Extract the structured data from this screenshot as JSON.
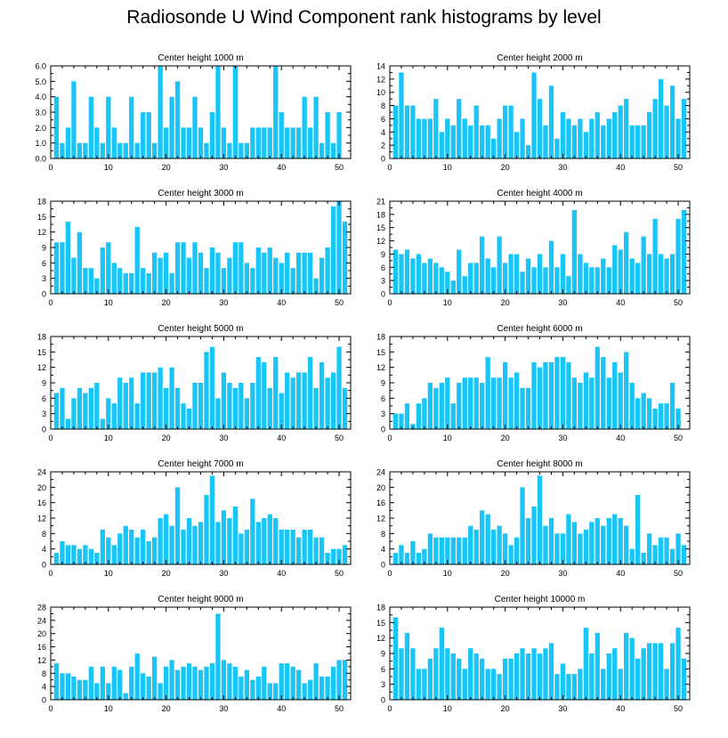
{
  "title": "Radiosonde U Wind Component rank histograms by level",
  "colors": {
    "bar": "#19c4f7",
    "axis": "#000000",
    "background": "#ffffff"
  },
  "chart_data": [
    {
      "type": "bar",
      "title": "Center height 1000 m",
      "ylim": [
        0,
        6.0
      ],
      "yticks": [
        0,
        1,
        2,
        3,
        4,
        5,
        6
      ],
      "ytick_labels": [
        "0.0",
        "1.0",
        "2.0",
        "3.0",
        "4.0",
        "5.0",
        "6.0"
      ],
      "xlim": [
        0,
        52
      ],
      "xticks": [
        0,
        10,
        20,
        30,
        40,
        50
      ],
      "x": [
        1,
        2,
        3,
        4,
        5,
        6,
        7,
        8,
        9,
        10,
        11,
        12,
        13,
        14,
        15,
        16,
        17,
        18,
        19,
        20,
        21,
        22,
        23,
        24,
        25,
        26,
        27,
        28,
        29,
        30,
        31,
        32,
        33,
        34,
        35,
        36,
        37,
        38,
        39,
        40,
        41,
        42,
        43,
        44,
        45,
        46,
        47,
        48,
        49,
        50,
        51
      ],
      "values": [
        4,
        1,
        2,
        5,
        1,
        1,
        4,
        2,
        1,
        4,
        2,
        1,
        1,
        4,
        1,
        3,
        3,
        1,
        6,
        2,
        4,
        5,
        2,
        2,
        4,
        2,
        1,
        3,
        6,
        2,
        1,
        6,
        1,
        1,
        2,
        2,
        2,
        2,
        6,
        3,
        2,
        2,
        2,
        4,
        2,
        4,
        1,
        3,
        1,
        3,
        0
      ]
    },
    {
      "type": "bar",
      "title": "Center height 2000 m",
      "ylim": [
        0,
        14
      ],
      "yticks": [
        0,
        2,
        4,
        6,
        8,
        10,
        12,
        14
      ],
      "ytick_labels": [
        "0",
        "2",
        "4",
        "6",
        "8",
        "10",
        "12",
        "14"
      ],
      "xlim": [
        0,
        52
      ],
      "xticks": [
        0,
        10,
        20,
        30,
        40,
        50
      ],
      "x": [
        1,
        2,
        3,
        4,
        5,
        6,
        7,
        8,
        9,
        10,
        11,
        12,
        13,
        14,
        15,
        16,
        17,
        18,
        19,
        20,
        21,
        22,
        23,
        24,
        25,
        26,
        27,
        28,
        29,
        30,
        31,
        32,
        33,
        34,
        35,
        36,
        37,
        38,
        39,
        40,
        41,
        42,
        43,
        44,
        45,
        46,
        47,
        48,
        49,
        50,
        51
      ],
      "values": [
        8,
        13,
        8,
        8,
        6,
        6,
        6,
        9,
        4,
        6,
        5,
        9,
        6,
        5,
        8,
        5,
        5,
        3,
        6,
        8,
        8,
        4,
        6,
        2,
        13,
        9,
        5,
        11,
        3,
        7,
        6,
        5,
        6,
        4,
        6,
        7,
        5,
        6,
        7,
        8,
        9,
        5,
        5,
        5,
        7,
        9,
        12,
        8,
        11,
        6,
        9
      ]
    },
    {
      "type": "bar",
      "title": "Center height 3000 m",
      "ylim": [
        0,
        18
      ],
      "yticks": [
        0,
        3,
        6,
        9,
        12,
        15,
        18
      ],
      "ytick_labels": [
        "0",
        "3",
        "6",
        "9",
        "12",
        "15",
        "18"
      ],
      "xlim": [
        0,
        52
      ],
      "xticks": [
        0,
        10,
        20,
        30,
        40,
        50
      ],
      "x": [
        1,
        2,
        3,
        4,
        5,
        6,
        7,
        8,
        9,
        10,
        11,
        12,
        13,
        14,
        15,
        16,
        17,
        18,
        19,
        20,
        21,
        22,
        23,
        24,
        25,
        26,
        27,
        28,
        29,
        30,
        31,
        32,
        33,
        34,
        35,
        36,
        37,
        38,
        39,
        40,
        41,
        42,
        43,
        44,
        45,
        46,
        47,
        48,
        49,
        50,
        51
      ],
      "values": [
        10,
        10,
        14,
        7,
        12,
        5,
        5,
        3,
        9,
        10,
        6,
        5,
        4,
        4,
        13,
        5,
        4,
        8,
        7,
        8,
        4,
        10,
        10,
        7,
        10,
        8,
        5,
        9,
        8,
        5,
        7,
        10,
        10,
        6,
        5,
        9,
        8,
        9,
        7,
        6,
        8,
        5,
        8,
        8,
        8,
        3,
        7,
        9,
        17,
        18,
        14
      ]
    },
    {
      "type": "bar",
      "title": "Center height 4000 m",
      "ylim": [
        0,
        21
      ],
      "yticks": [
        0,
        3,
        6,
        9,
        12,
        15,
        18,
        21
      ],
      "ytick_labels": [
        "0",
        "3",
        "6",
        "9",
        "12",
        "15",
        "18",
        "21"
      ],
      "xlim": [
        0,
        52
      ],
      "xticks": [
        0,
        10,
        20,
        30,
        40,
        50
      ],
      "x": [
        1,
        2,
        3,
        4,
        5,
        6,
        7,
        8,
        9,
        10,
        11,
        12,
        13,
        14,
        15,
        16,
        17,
        18,
        19,
        20,
        21,
        22,
        23,
        24,
        25,
        26,
        27,
        28,
        29,
        30,
        31,
        32,
        33,
        34,
        35,
        36,
        37,
        38,
        39,
        40,
        41,
        42,
        43,
        44,
        45,
        46,
        47,
        48,
        49,
        50,
        51
      ],
      "values": [
        10,
        9,
        10,
        8,
        9,
        7,
        8,
        7,
        6,
        5,
        3,
        10,
        4,
        7,
        7,
        13,
        8,
        6,
        13,
        7,
        9,
        9,
        5,
        8,
        6,
        9,
        6,
        12,
        6,
        9,
        4,
        19,
        9,
        7,
        6,
        6,
        8,
        6,
        11,
        10,
        14,
        8,
        7,
        13,
        9,
        17,
        9,
        8,
        9,
        17,
        19
      ]
    },
    {
      "type": "bar",
      "title": "Center height 5000 m",
      "ylim": [
        0,
        18
      ],
      "yticks": [
        0,
        3,
        6,
        9,
        12,
        15,
        18
      ],
      "ytick_labels": [
        "0",
        "3",
        "6",
        "9",
        "12",
        "15",
        "18"
      ],
      "xlim": [
        0,
        52
      ],
      "xticks": [
        0,
        10,
        20,
        30,
        40,
        50
      ],
      "x": [
        1,
        2,
        3,
        4,
        5,
        6,
        7,
        8,
        9,
        10,
        11,
        12,
        13,
        14,
        15,
        16,
        17,
        18,
        19,
        20,
        21,
        22,
        23,
        24,
        25,
        26,
        27,
        28,
        29,
        30,
        31,
        32,
        33,
        34,
        35,
        36,
        37,
        38,
        39,
        40,
        41,
        42,
        43,
        44,
        45,
        46,
        47,
        48,
        49,
        50,
        51
      ],
      "values": [
        7,
        8,
        2,
        6,
        8,
        7,
        8,
        9,
        2,
        6,
        5,
        10,
        9,
        10,
        5,
        11,
        11,
        11,
        12,
        8,
        12,
        8,
        5,
        4,
        9,
        9,
        15,
        16,
        6,
        11,
        9,
        8,
        9,
        6,
        9,
        14,
        13,
        8,
        14,
        7,
        11,
        10,
        11,
        11,
        14,
        8,
        13,
        10,
        11,
        16,
        8
      ]
    },
    {
      "type": "bar",
      "title": "Center height 6000 m",
      "ylim": [
        0,
        18
      ],
      "yticks": [
        0,
        3,
        6,
        9,
        12,
        15,
        18
      ],
      "ytick_labels": [
        "0",
        "3",
        "6",
        "9",
        "12",
        "15",
        "18"
      ],
      "xlim": [
        0,
        52
      ],
      "xticks": [
        0,
        10,
        20,
        30,
        40,
        50
      ],
      "x": [
        1,
        2,
        3,
        4,
        5,
        6,
        7,
        8,
        9,
        10,
        11,
        12,
        13,
        14,
        15,
        16,
        17,
        18,
        19,
        20,
        21,
        22,
        23,
        24,
        25,
        26,
        27,
        28,
        29,
        30,
        31,
        32,
        33,
        34,
        35,
        36,
        37,
        38,
        39,
        40,
        41,
        42,
        43,
        44,
        45,
        46,
        47,
        48,
        49,
        50,
        51
      ],
      "values": [
        3,
        3,
        5,
        1,
        5,
        6,
        9,
        8,
        9,
        10,
        5,
        9,
        10,
        10,
        10,
        9,
        14,
        10,
        10,
        13,
        10,
        11,
        8,
        8,
        13,
        12,
        13,
        13,
        14,
        14,
        13,
        10,
        9,
        11,
        10,
        16,
        14,
        10,
        13,
        11,
        15,
        9,
        6,
        7,
        6,
        4,
        5,
        5,
        9,
        4,
        0
      ]
    },
    {
      "type": "bar",
      "title": "Center height 7000 m",
      "ylim": [
        0,
        24
      ],
      "yticks": [
        0,
        4,
        8,
        12,
        16,
        20,
        24
      ],
      "ytick_labels": [
        "0",
        "4",
        "8",
        "12",
        "16",
        "20",
        "24"
      ],
      "xlim": [
        0,
        52
      ],
      "xticks": [
        0,
        10,
        20,
        30,
        40,
        50
      ],
      "x": [
        1,
        2,
        3,
        4,
        5,
        6,
        7,
        8,
        9,
        10,
        11,
        12,
        13,
        14,
        15,
        16,
        17,
        18,
        19,
        20,
        21,
        22,
        23,
        24,
        25,
        26,
        27,
        28,
        29,
        30,
        31,
        32,
        33,
        34,
        35,
        36,
        37,
        38,
        39,
        40,
        41,
        42,
        43,
        44,
        45,
        46,
        47,
        48,
        49,
        50,
        51
      ],
      "values": [
        3,
        6,
        5,
        5,
        4,
        5,
        4,
        3,
        9,
        7,
        5,
        8,
        10,
        9,
        7,
        9,
        6,
        7,
        12,
        13,
        10,
        20,
        9,
        12,
        10,
        11,
        18,
        23,
        11,
        14,
        12,
        15,
        8,
        9,
        17,
        11,
        12,
        13,
        12,
        9,
        9,
        9,
        7,
        9,
        9,
        7,
        7,
        3,
        4,
        4,
        5
      ]
    },
    {
      "type": "bar",
      "title": "Center height 8000 m",
      "ylim": [
        0,
        24
      ],
      "yticks": [
        0,
        4,
        8,
        12,
        16,
        20,
        24
      ],
      "ytick_labels": [
        "0",
        "4",
        "8",
        "12",
        "16",
        "20",
        "24"
      ],
      "xlim": [
        0,
        52
      ],
      "xticks": [
        0,
        10,
        20,
        30,
        40,
        50
      ],
      "x": [
        1,
        2,
        3,
        4,
        5,
        6,
        7,
        8,
        9,
        10,
        11,
        12,
        13,
        14,
        15,
        16,
        17,
        18,
        19,
        20,
        21,
        22,
        23,
        24,
        25,
        26,
        27,
        28,
        29,
        30,
        31,
        32,
        33,
        34,
        35,
        36,
        37,
        38,
        39,
        40,
        41,
        42,
        43,
        44,
        45,
        46,
        47,
        48,
        49,
        50,
        51
      ],
      "values": [
        3,
        5,
        3,
        6,
        3,
        4,
        8,
        7,
        7,
        7,
        7,
        7,
        7,
        10,
        9,
        14,
        13,
        9,
        10,
        8,
        5,
        7,
        20,
        12,
        15,
        23,
        10,
        12,
        8,
        8,
        13,
        11,
        8,
        9,
        11,
        12,
        10,
        12,
        13,
        12,
        10,
        4,
        18,
        3,
        8,
        5,
        7,
        7,
        4,
        8,
        5
      ]
    },
    {
      "type": "bar",
      "title": "Center height 9000 m",
      "ylim": [
        0,
        28
      ],
      "yticks": [
        0,
        4,
        8,
        12,
        16,
        20,
        24,
        28
      ],
      "ytick_labels": [
        "0",
        "4",
        "8",
        "12",
        "16",
        "20",
        "24",
        "28"
      ],
      "xlim": [
        0,
        52
      ],
      "xticks": [
        0,
        10,
        20,
        30,
        40,
        50
      ],
      "x": [
        1,
        2,
        3,
        4,
        5,
        6,
        7,
        8,
        9,
        10,
        11,
        12,
        13,
        14,
        15,
        16,
        17,
        18,
        19,
        20,
        21,
        22,
        23,
        24,
        25,
        26,
        27,
        28,
        29,
        30,
        31,
        32,
        33,
        34,
        35,
        36,
        37,
        38,
        39,
        40,
        41,
        42,
        43,
        44,
        45,
        46,
        47,
        48,
        49,
        50,
        51
      ],
      "values": [
        11,
        8,
        8,
        7,
        6,
        6,
        10,
        5,
        10,
        5,
        10,
        9,
        2,
        10,
        14,
        8,
        7,
        13,
        5,
        10,
        12,
        9,
        10,
        11,
        10,
        9,
        10,
        11,
        26,
        12,
        11,
        10,
        7,
        9,
        6,
        7,
        10,
        5,
        5,
        11,
        11,
        10,
        9,
        5,
        6,
        11,
        7,
        7,
        10,
        12,
        12
      ]
    },
    {
      "type": "bar",
      "title": "Center height 10000 m",
      "ylim": [
        0,
        18
      ],
      "yticks": [
        0,
        3,
        6,
        9,
        12,
        15,
        18
      ],
      "ytick_labels": [
        "0",
        "3",
        "6",
        "9",
        "12",
        "15",
        "18"
      ],
      "xlim": [
        0,
        52
      ],
      "xticks": [
        0,
        10,
        20,
        30,
        40,
        50
      ],
      "x": [
        1,
        2,
        3,
        4,
        5,
        6,
        7,
        8,
        9,
        10,
        11,
        12,
        13,
        14,
        15,
        16,
        17,
        18,
        19,
        20,
        21,
        22,
        23,
        24,
        25,
        26,
        27,
        28,
        29,
        30,
        31,
        32,
        33,
        34,
        35,
        36,
        37,
        38,
        39,
        40,
        41,
        42,
        43,
        44,
        45,
        46,
        47,
        48,
        49,
        50,
        51
      ],
      "values": [
        16,
        10,
        13,
        10,
        6,
        6,
        8,
        10,
        14,
        10,
        9,
        8,
        6,
        10,
        9,
        8,
        6,
        6,
        5,
        8,
        8,
        9,
        10,
        9,
        10,
        9,
        10,
        11,
        5,
        7,
        5,
        5,
        6,
        14,
        9,
        13,
        6,
        9,
        10,
        6,
        13,
        12,
        8,
        10,
        11,
        11,
        11,
        6,
        11,
        14,
        8
      ]
    }
  ]
}
